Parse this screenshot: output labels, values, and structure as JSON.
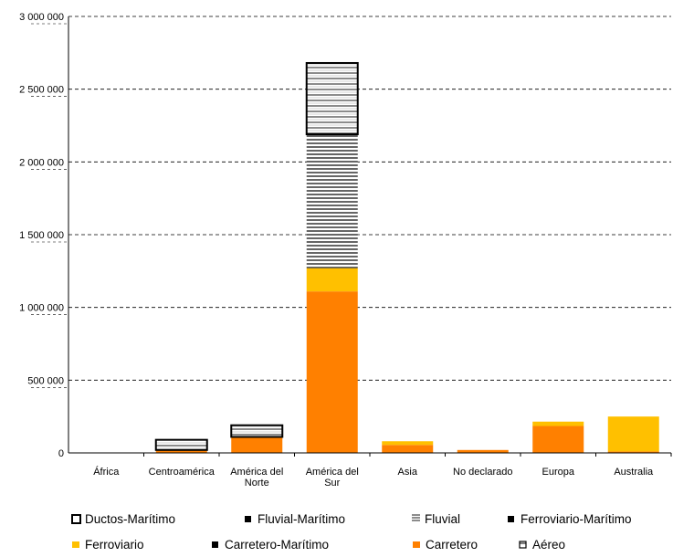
{
  "chart_data": {
    "type": "bar",
    "stacked": true,
    "categories": [
      "África",
      "Centroamérica",
      "América del Norte",
      "América del Sur",
      "Asia",
      "No declarado",
      "Europa",
      "Australia"
    ],
    "category_lines": [
      [
        "África"
      ],
      [
        "Centroamérica"
      ],
      [
        "América del",
        "Norte"
      ],
      [
        "América del",
        "Sur"
      ],
      [
        "Asia"
      ],
      [
        "No declarado"
      ],
      [
        "Europa"
      ],
      [
        "Australia"
      ]
    ],
    "ylim": [
      0,
      3000000
    ],
    "y_ticks": [
      0,
      500000,
      1000000,
      1500000,
      2000000,
      2500000,
      3000000
    ],
    "y_tick_labels": [
      "0",
      "500 000",
      "1 000 000",
      "1 500 000",
      "2 000 000",
      "2 500 000",
      "3 000 000"
    ],
    "grid": "horizontal-dashed",
    "legend_position": "bottom",
    "series": [
      {
        "name": "Carretero",
        "color": "#FF8000",
        "pattern": "solid",
        "values": [
          0,
          15000,
          110000,
          1110000,
          55000,
          20000,
          185000,
          10000
        ]
      },
      {
        "name": "Carretero-Marítimo",
        "color": "#000000",
        "pattern": "solid",
        "values": [
          0,
          0,
          0,
          0,
          0,
          0,
          0,
          0
        ]
      },
      {
        "name": "Ferroviario",
        "color": "#FFC000",
        "pattern": "solid",
        "values": [
          0,
          5000,
          0,
          160000,
          25000,
          0,
          30000,
          240000
        ]
      },
      {
        "name": "Ferroviario-Marítimo",
        "color": "#000000",
        "pattern": "solid",
        "values": [
          0,
          0,
          0,
          0,
          0,
          0,
          0,
          0
        ]
      },
      {
        "name": "Fluvial",
        "color": "#000000",
        "pattern": "hlines",
        "values": [
          0,
          0,
          0,
          920000,
          0,
          0,
          0,
          0
        ]
      },
      {
        "name": "Fluvial-Marítimo",
        "color": "#000000",
        "pattern": "solid",
        "values": [
          0,
          0,
          0,
          0,
          0,
          0,
          0,
          0
        ]
      },
      {
        "name": "Ductos-Marítimo",
        "color": "#000000",
        "pattern": "hollow-lines",
        "values": [
          0,
          70000,
          80000,
          490000,
          0,
          0,
          0,
          0
        ]
      }
    ],
    "legend": {
      "row1": [
        "Ductos-Marítimo",
        "Fluvial-Marítimo",
        "Fluvial",
        "Ferroviario-Marítimo"
      ],
      "row2": [
        "Ferroviario",
        "Carretero-Marítimo",
        "Carretero",
        "Aéreo"
      ],
      "markers": {
        "Ductos-Marítimo": "hollow-square",
        "Fluvial-Marítimo": "filled-square",
        "Fluvial": "lines-glyph",
        "Ferroviario-Marítimo": "filled-square",
        "Ferroviario": "yellow-square",
        "Carretero-Marítimo": "filled-square",
        "Carretero": "orange-square",
        "Aéreo": "hollow-square-small"
      }
    }
  }
}
